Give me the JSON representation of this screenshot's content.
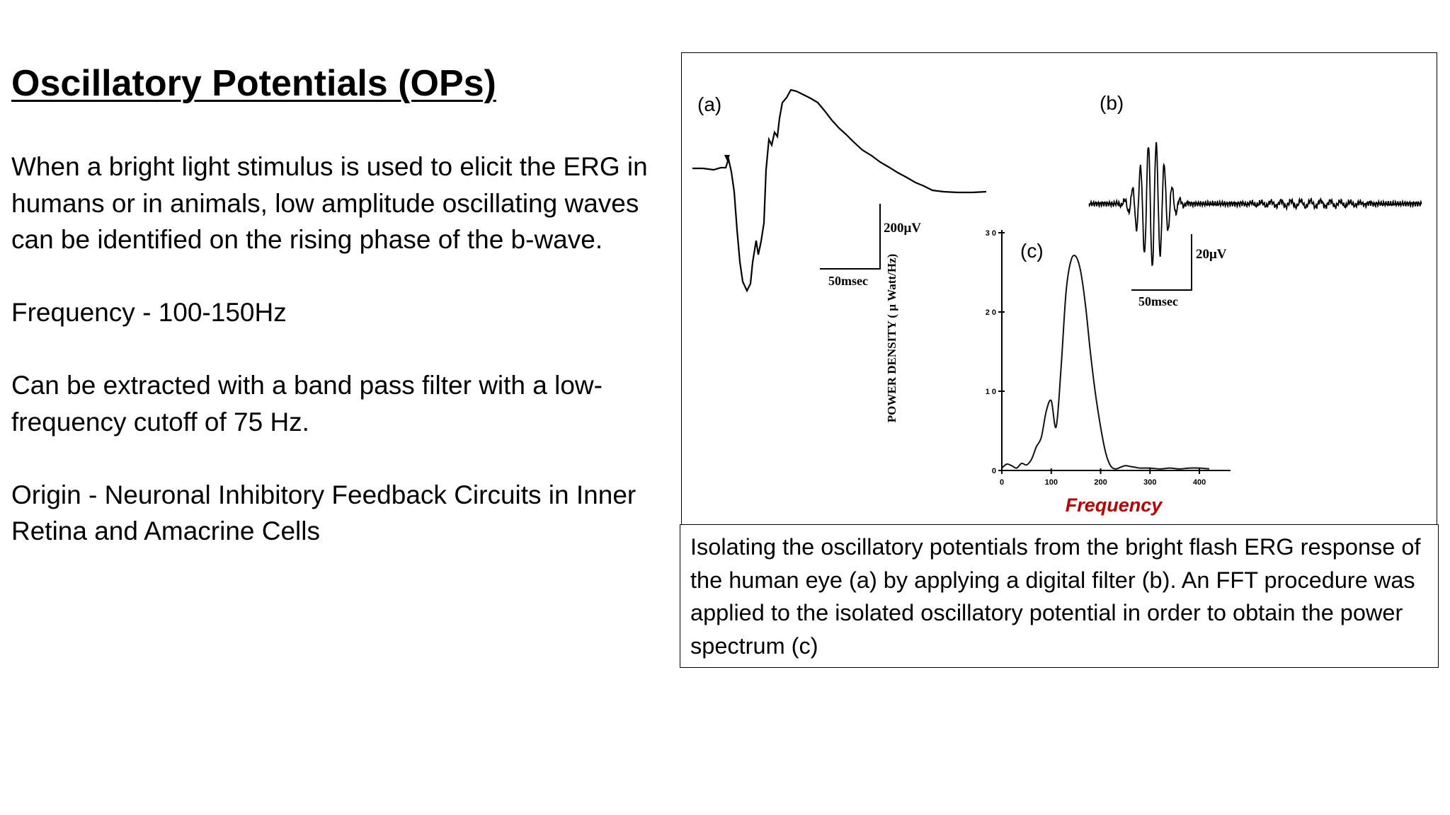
{
  "title": "Oscillatory Potentials (OPs)",
  "paragraphs": [
    "When a bright light stimulus is used to elicit the ERG in humans or in animals, low amplitude oscillating waves can be identified on the rising phase of the b-wave.",
    "Frequency - 100-150Hz",
    "Can be extracted with a band pass filter with a low-frequency cutoff of 75 Hz.",
    "Origin - Neuronal Inhibitory Feedback Circuits in Inner Retina and Amacrine Cells"
  ],
  "figure": {
    "panel_a": {
      "label": "(a)",
      "amp_scale": "200μV",
      "time_scale": "50msec"
    },
    "panel_b": {
      "label": "(b)",
      "amp_scale": "20μV",
      "time_scale": "50msec"
    },
    "panel_c": {
      "label": "(c)",
      "ylabel": "POWER DENSITY ( μ Watt/Hz)",
      "xlabel": "Frequency",
      "xlabel_color": "#c00000",
      "y_ticks": [
        "0",
        "1 0",
        "2 0",
        "3 0"
      ],
      "x_ticks": [
        "0",
        "100",
        "200",
        "300",
        "400"
      ]
    }
  },
  "caption": "Isolating the oscillatory potentials from the bright flash ERG response of the human eye (a) by applying a digital filter (b). An FFT procedure was applied to the isolated oscillatory potential in order to obtain the power spectrum (c)",
  "chart_data": {
    "type": "line",
    "title": "",
    "xlabel": "Frequency",
    "ylabel": "POWER DENSITY ( μ Watt/Hz)",
    "xlim": [
      0,
      420
    ],
    "ylim": [
      0,
      30
    ],
    "x_ticks": [
      0,
      100,
      200,
      300,
      400
    ],
    "y_ticks": [
      0,
      10,
      20,
      30
    ],
    "series": [
      {
        "x": [
          0,
          10,
          20,
          30,
          40,
          50,
          60,
          70,
          80,
          90,
          100,
          110,
          120,
          130,
          140,
          150,
          160,
          170,
          180,
          190,
          200,
          210,
          220,
          230,
          240,
          250,
          260,
          270,
          280,
          300,
          320,
          340,
          360,
          380,
          400,
          420
        ],
        "values": [
          0.3,
          0.8,
          0.6,
          0.3,
          0.9,
          0.7,
          1.4,
          3.0,
          4.2,
          7.5,
          8.8,
          5.5,
          13.0,
          22.5,
          26.5,
          27.0,
          25.0,
          20.5,
          14.5,
          9.5,
          5.5,
          2.3,
          0.6,
          0.2,
          0.4,
          0.6,
          0.5,
          0.4,
          0.3,
          0.3,
          0.2,
          0.3,
          0.2,
          0.3,
          0.3,
          0.2
        ]
      }
    ]
  }
}
